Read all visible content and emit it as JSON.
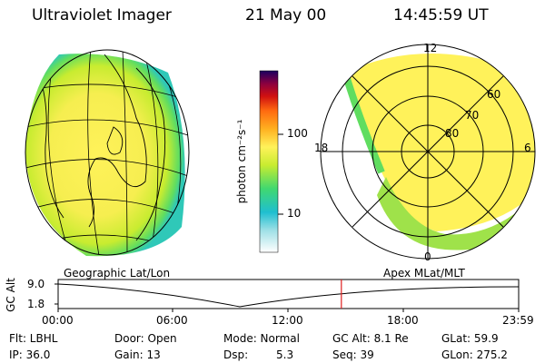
{
  "header": {
    "instrument": "Ultraviolet Imager",
    "date": "21 May 00",
    "time": "14:45:59 UT"
  },
  "colorbar": {
    "unit_label": "photon cm⁻²s⁻¹",
    "ticks": [
      "100",
      "10"
    ]
  },
  "polar_plot": {
    "mlt_labels": [
      "12",
      "18",
      "6",
      "0"
    ],
    "lat_labels": [
      "60",
      "70",
      "80"
    ]
  },
  "timeline": {
    "left_title": "Geographic Lat/Lon",
    "right_title": "Apex MLat/MLT",
    "axis_label": "GC Alt",
    "y_ticks": [
      "9.0",
      "1.8"
    ],
    "x_ticks": [
      "00:00",
      "06:00",
      "12:00",
      "18:00",
      "23:59"
    ],
    "current_time_fraction": 0.615
  },
  "status": {
    "flt": "Flt: LBHL",
    "ip": "IP: 36.0",
    "door": "Door: Open",
    "gain": "Gain: 13",
    "mode": "Mode: Normal",
    "dsp_label": "Dsp:",
    "dsp_value": "5.3",
    "gc_alt": "GC Alt: 8.1 Re",
    "seq": "Seq: 39",
    "glat": "GLat:  59.9",
    "glon": "GLon: 275.2"
  },
  "colors": {
    "colorbar": [
      "#ffffff",
      "#1fbfd0",
      "#40d870",
      "#c8ec30",
      "#fff25a",
      "#ffb020",
      "#ff6a10",
      "#d01010",
      "#8a0040",
      "#1a0060"
    ],
    "red_marker": "#e02020"
  }
}
